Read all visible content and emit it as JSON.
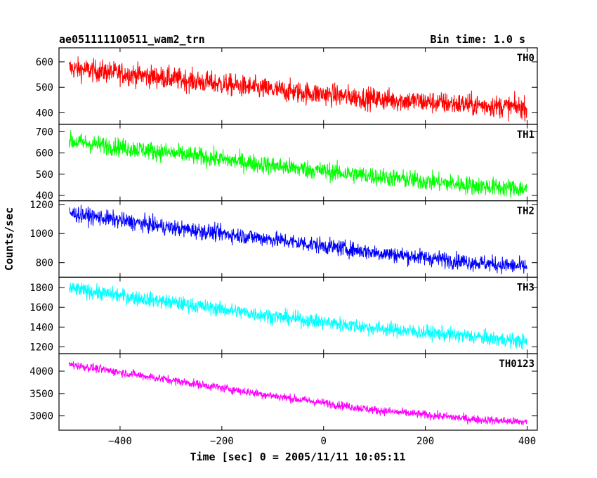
{
  "header": {
    "title": "ae051111100511_wam2_trn",
    "bin_time": "Bin time: 1.0 s"
  },
  "chart_data": {
    "type": "line",
    "title": "ae051111100511_wam2_trn",
    "subtitle": "Bin time: 1.0 s",
    "xlabel": "Time [sec] 0 = 2005/11/11 10:05:11",
    "ylabel": "Counts/sec",
    "xlim": [
      -520,
      420
    ],
    "x_ticks": [
      -400,
      -200,
      0,
      200,
      400
    ],
    "x_tick_labels": [
      "−400",
      "−200",
      "0",
      "200",
      "400"
    ],
    "x_range": [
      -500,
      400
    ],
    "grid": false,
    "panels": [
      {
        "name": "TH0",
        "color": "#ff0000",
        "ylim": [
          355,
          655
        ],
        "y_ticks": [
          400,
          500,
          600
        ],
        "trend": {
          "x": [
            -500,
            -300,
            -100,
            100,
            300,
            400
          ],
          "y": [
            575,
            535,
            490,
            455,
            430,
            420
          ]
        },
        "noise_sd": 22
      },
      {
        "name": "TH1",
        "color": "#00ff00",
        "ylim": [
          375,
          735
        ],
        "y_ticks": [
          400,
          500,
          600,
          700
        ],
        "trend": {
          "x": [
            -500,
            -300,
            -100,
            100,
            300,
            400
          ],
          "y": [
            655,
            600,
            540,
            490,
            445,
            430
          ]
        },
        "noise_sd": 22
      },
      {
        "name": "TH2",
        "color": "#0000ff",
        "ylim": [
          700,
          1225
        ],
        "y_ticks": [
          800,
          1000,
          1200
        ],
        "trend": {
          "x": [
            -500,
            -300,
            -100,
            100,
            300,
            400
          ],
          "y": [
            1140,
            1040,
            960,
            870,
            800,
            770
          ]
        },
        "noise_sd": 28
      },
      {
        "name": "TH3",
        "color": "#00ffff",
        "ylim": [
          1130,
          1905
        ],
        "y_ticks": [
          1200,
          1400,
          1600,
          1800
        ],
        "trend": {
          "x": [
            -500,
            -300,
            -100,
            100,
            300,
            400
          ],
          "y": [
            1790,
            1650,
            1510,
            1390,
            1300,
            1250
          ]
        },
        "noise_sd": 38
      },
      {
        "name": "TH0123",
        "color": "#ff00ff",
        "ylim": [
          2680,
          4390
        ],
        "y_ticks": [
          3000,
          3500,
          4000
        ],
        "trend": {
          "x": [
            -500,
            -300,
            -100,
            100,
            300,
            400
          ],
          "y": [
            4150,
            3800,
            3450,
            3130,
            2920,
            2860
          ]
        },
        "noise_sd": 48
      }
    ]
  }
}
